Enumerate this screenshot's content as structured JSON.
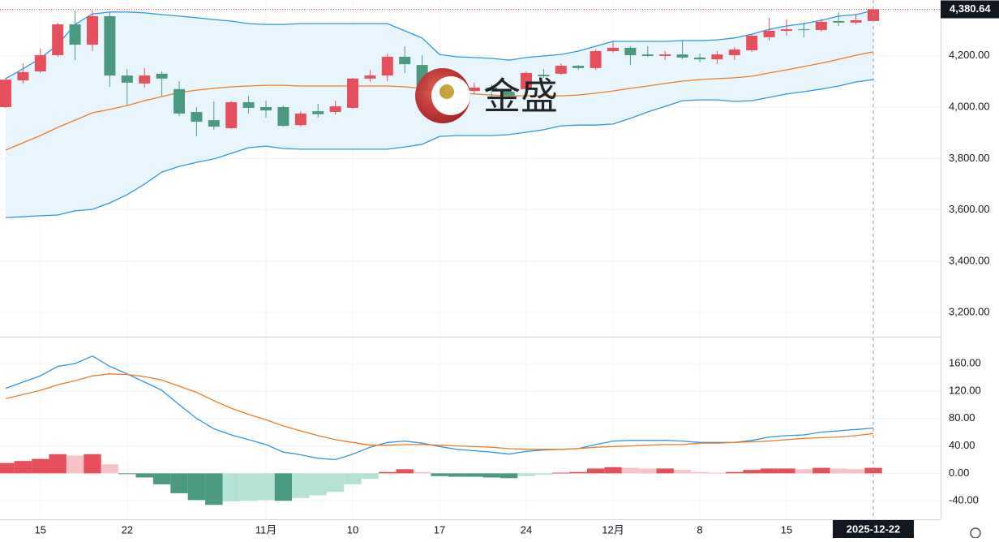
{
  "watermark": "金盛",
  "chart_data": [
    {
      "type": "candlestick",
      "categories": [
        null,
        null,
        "15",
        null,
        null,
        null,
        null,
        "22",
        null,
        null,
        null,
        null,
        null,
        null,
        null,
        "11月",
        null,
        null,
        null,
        null,
        "10",
        null,
        null,
        null,
        null,
        "17",
        null,
        null,
        null,
        null,
        "24",
        null,
        null,
        null,
        null,
        "12月",
        null,
        null,
        null,
        null,
        "8",
        null,
        null,
        null,
        null,
        "15",
        null,
        null,
        null,
        null,
        "2025-12-22"
      ],
      "open": [
        4000,
        4104,
        4139,
        4202,
        4322,
        4243,
        4354,
        4123,
        4092,
        4130,
        4070,
        3981,
        3949,
        3918,
        4019,
        4000,
        4000,
        3930,
        3984,
        3981,
        3997,
        4111,
        4123,
        4196,
        4164,
        4076,
        4051,
        4063,
        4076,
        4060,
        4070,
        4126,
        4130,
        4161,
        4152,
        4218,
        4231,
        4205,
        4199,
        4205,
        4193,
        4186,
        4202,
        4221,
        4272,
        4297,
        4303,
        4300,
        4335,
        4329,
        4335
      ],
      "high": [
        4115,
        4171,
        4227,
        4329,
        4376,
        4376,
        4370,
        4148,
        4152,
        4139,
        4101,
        4000,
        4022,
        4025,
        4044,
        4025,
        4006,
        3984,
        4013,
        4025,
        4114,
        4145,
        4208,
        4237,
        4202,
        4098,
        4080,
        4095,
        4089,
        4070,
        4139,
        4148,
        4171,
        4164,
        4224,
        4259,
        4237,
        4237,
        4218,
        4259,
        4208,
        4218,
        4234,
        4284,
        4348,
        4341,
        4329,
        4344,
        4370,
        4363,
        4392
      ],
      "low": [
        3997,
        4091,
        4133,
        4196,
        4183,
        4218,
        4079,
        4006,
        4076,
        4044,
        3965,
        3886,
        3912,
        3915,
        3975,
        3959,
        3924,
        3924,
        3959,
        3972,
        3994,
        4098,
        4101,
        4133,
        4038,
        4025,
        4040,
        4051,
        4041,
        4032,
        4063,
        4114,
        4126,
        4145,
        4145,
        4212,
        4164,
        4196,
        4183,
        4186,
        4174,
        4167,
        4183,
        4215,
        4259,
        4278,
        4272,
        4294,
        4316,
        4322,
        4335
      ],
      "close": [
        4107,
        4136,
        4202,
        4322,
        4243,
        4354,
        4123,
        4095,
        4123,
        4111,
        3975,
        3943,
        3924,
        4019,
        3997,
        3987,
        3927,
        3975,
        3972,
        4003,
        4111,
        4123,
        4196,
        4167,
        4063,
        4038,
        4063,
        4076,
        4063,
        4044,
        4133,
        4120,
        4161,
        4152,
        4218,
        4231,
        4202,
        4199,
        4205,
        4193,
        4186,
        4205,
        4224,
        4278,
        4297,
        4303,
        4300,
        4332,
        4329,
        4338,
        4380.64
      ],
      "up_color": "#e5505c",
      "down_color": "#4a9a82",
      "series": [
        {
          "color": "#2f96e6",
          "values": [
            4111,
            4149,
            4190,
            4243,
            4322,
            4363,
            4370,
            4370,
            4367,
            4360,
            4354,
            4348,
            4341,
            4335,
            4325,
            4322,
            4322,
            4325,
            4325,
            4325,
            4325,
            4325,
            4325,
            4297,
            4269,
            4205,
            4196,
            4193,
            4190,
            4183,
            4193,
            4199,
            4205,
            4218,
            4237,
            4256,
            4256,
            4256,
            4256,
            4259,
            4259,
            4262,
            4269,
            4284,
            4303,
            4316,
            4325,
            4338,
            4354,
            4360,
            4376
          ]
        },
        {
          "color": "#f07c1e",
          "values": [
            3833,
            3861,
            3889,
            3921,
            3949,
            3978,
            3991,
            4006,
            4025,
            4041,
            4057,
            4066,
            4073,
            4079,
            4082,
            4085,
            4085,
            4082,
            4082,
            4082,
            4082,
            4082,
            4082,
            4079,
            4073,
            4063,
            4057,
            4051,
            4047,
            4044,
            4044,
            4044,
            4044,
            4047,
            4054,
            4063,
            4073,
            4082,
            4092,
            4101,
            4107,
            4111,
            4114,
            4120,
            4133,
            4145,
            4158,
            4171,
            4186,
            4202,
            4215
          ]
        },
        {
          "color": "#2f96e6",
          "values": [
            3570,
            3573,
            3577,
            3580,
            3596,
            3602,
            3627,
            3659,
            3700,
            3747,
            3769,
            3785,
            3798,
            3820,
            3842,
            3848,
            3839,
            3836,
            3836,
            3836,
            3836,
            3836,
            3836,
            3845,
            3855,
            3886,
            3889,
            3889,
            3889,
            3893,
            3902,
            3912,
            3927,
            3930,
            3930,
            3934,
            3956,
            3981,
            4003,
            4025,
            4028,
            4028,
            4022,
            4025,
            4038,
            4051,
            4060,
            4070,
            4082,
            4098,
            4107
          ]
        }
      ],
      "band_fill": "#e9f5fc",
      "ylim": [
        3106,
        4417
      ],
      "yticks": [
        {
          "value": 3200,
          "label": "3,200.00"
        },
        {
          "value": 3400,
          "label": "3,400.00"
        },
        {
          "value": 3600,
          "label": "3,600.00"
        },
        {
          "value": 3800,
          "label": "3,800.00"
        },
        {
          "value": 4000,
          "label": "4,000.00"
        },
        {
          "value": 4200,
          "label": "4,200.00"
        }
      ],
      "last_price": {
        "value": 4380.64,
        "label": "4,380.64"
      },
      "grid": true
    },
    {
      "type": "macd",
      "series": [
        {
          "color": "#2f96e6",
          "values": [
            124,
            133,
            142,
            156,
            160,
            171,
            156,
            145,
            133,
            121,
            100,
            80,
            65,
            56,
            49,
            42,
            31,
            27,
            22,
            20,
            28,
            38,
            45,
            47,
            44,
            39,
            35,
            33,
            31,
            28,
            32,
            34,
            35,
            36,
            42,
            47,
            48,
            48,
            48,
            47,
            45,
            45,
            45,
            48,
            53,
            55,
            56,
            60,
            62,
            64,
            66
          ]
        },
        {
          "color": "#f07c1e",
          "values": [
            109,
            115,
            121,
            129,
            135,
            142,
            145,
            144,
            141,
            136,
            127,
            118,
            106,
            95,
            86,
            78,
            69,
            62,
            55,
            49,
            45,
            41,
            41,
            42,
            42,
            41,
            40,
            39,
            38,
            36,
            35,
            35,
            35,
            36,
            38,
            39,
            40,
            41,
            42,
            42,
            44,
            44,
            45,
            46,
            47,
            49,
            51,
            52,
            53,
            55,
            58
          ]
        }
      ],
      "histogram": {
        "values": [
          15,
          18,
          21,
          28,
          26,
          28,
          13,
          -1,
          -6,
          -16,
          -29,
          -39,
          -46,
          -41,
          -40,
          -39,
          -40,
          -36,
          -32,
          -27,
          -16,
          -8,
          2,
          6,
          2,
          -4,
          -5,
          -5,
          -6,
          -7,
          -4,
          -2,
          1,
          2,
          7,
          9,
          8,
          7,
          7,
          5,
          2,
          1,
          2,
          5,
          7,
          7,
          6,
          8,
          7,
          6,
          8
        ],
        "colors": {
          "pos_rising": "#e5505c",
          "pos_falling": "#f6c3c7",
          "neg_falling": "#4a9a82",
          "neg_rising": "#b4e3d6"
        }
      },
      "ylim": [
        -67,
        198
      ],
      "yticks": [
        {
          "value": -40,
          "label": "-40.00"
        },
        {
          "value": 0,
          "label": "0.00"
        },
        {
          "value": 40,
          "label": "40.00"
        },
        {
          "value": 80,
          "label": "80.00"
        },
        {
          "value": 120,
          "label": "120.00"
        },
        {
          "value": 160,
          "label": "160.00"
        }
      ],
      "grid": true
    }
  ]
}
